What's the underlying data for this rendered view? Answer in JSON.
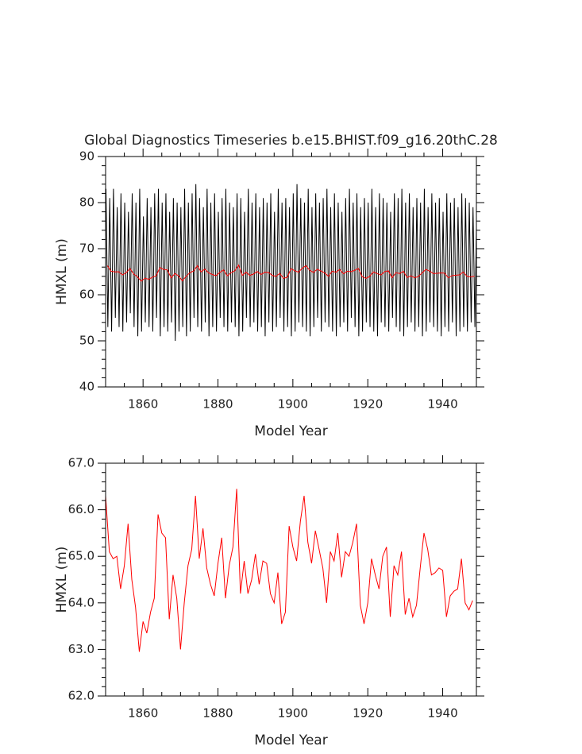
{
  "chart_data": [
    {
      "type": "line",
      "title": "Global Diagnostics Timeseries b.e15.BHIST.f09_g16.20thC.28",
      "x_label": "Model Year",
      "y_label": "HMXL (m)",
      "xlim": [
        1850,
        1949
      ],
      "xticks": [
        1860,
        1880,
        1900,
        1920,
        1940
      ],
      "xticks_minor": [
        1855,
        1865,
        1870,
        1875,
        1885,
        1890,
        1895,
        1905,
        1910,
        1915,
        1925,
        1930,
        1935,
        1945
      ],
      "ylim": [
        40,
        90
      ],
      "yticks": [
        40,
        50,
        60,
        70,
        80,
        90
      ],
      "yticks_minor": [
        42,
        44,
        46,
        48,
        52,
        54,
        56,
        58,
        62,
        64,
        66,
        68,
        72,
        74,
        76,
        78,
        82,
        84,
        86,
        88
      ],
      "series": [
        {
          "color": "#000000",
          "x": [
            1850.1,
            1850.6,
            1851.1,
            1851.6,
            1852.1,
            1852.6,
            1853.1,
            1853.6,
            1854.1,
            1854.6,
            1855.1,
            1855.6,
            1856.1,
            1856.6,
            1857.1,
            1857.6,
            1858.1,
            1858.6,
            1859.1,
            1859.6,
            1860.1,
            1860.6,
            1861.1,
            1861.6,
            1862.1,
            1862.6,
            1863.1,
            1863.6,
            1864.1,
            1864.6,
            1865.1,
            1865.6,
            1866.1,
            1866.6,
            1867.1,
            1867.6,
            1868.1,
            1868.6,
            1869.1,
            1869.6,
            1870.1,
            1870.6,
            1871.1,
            1871.6,
            1872.1,
            1872.6,
            1873.1,
            1873.6,
            1874.1,
            1874.6,
            1875.1,
            1875.6,
            1876.1,
            1876.6,
            1877.1,
            1877.6,
            1878.1,
            1878.6,
            1879.1,
            1879.6,
            1880.1,
            1880.6,
            1881.1,
            1881.6,
            1882.1,
            1882.6,
            1883.1,
            1883.6,
            1884.1,
            1884.6,
            1885.1,
            1885.6,
            1886.1,
            1886.6,
            1887.1,
            1887.6,
            1888.1,
            1888.6,
            1889.1,
            1889.6,
            1890.1,
            1890.6,
            1891.1,
            1891.6,
            1892.1,
            1892.6,
            1893.1,
            1893.6,
            1894.1,
            1894.6,
            1895.1,
            1895.6,
            1896.1,
            1896.6,
            1897.1,
            1897.6,
            1898.1,
            1898.6,
            1899.1,
            1899.6,
            1900.1,
            1900.6,
            1901.1,
            1901.6,
            1902.1,
            1902.6,
            1903.1,
            1903.6,
            1904.1,
            1904.6,
            1905.1,
            1905.6,
            1906.1,
            1906.6,
            1907.1,
            1907.6,
            1908.1,
            1908.6,
            1909.1,
            1909.6,
            1910.1,
            1910.6,
            1911.1,
            1911.6,
            1912.1,
            1912.6,
            1913.1,
            1913.6,
            1914.1,
            1914.6,
            1915.1,
            1915.6,
            1916.1,
            1916.6,
            1917.1,
            1917.6,
            1918.1,
            1918.6,
            1919.1,
            1919.6,
            1920.1,
            1920.6,
            1921.1,
            1921.6,
            1922.1,
            1922.6,
            1923.1,
            1923.6,
            1924.1,
            1924.6,
            1925.1,
            1925.6,
            1926.1,
            1926.6,
            1927.1,
            1927.6,
            1928.1,
            1928.6,
            1929.1,
            1929.6,
            1930.1,
            1930.6,
            1931.1,
            1931.6,
            1932.1,
            1932.6,
            1933.1,
            1933.6,
            1934.1,
            1934.6,
            1935.1,
            1935.6,
            1936.1,
            1936.6,
            1937.1,
            1937.6,
            1938.1,
            1938.6,
            1939.1,
            1939.6,
            1940.1,
            1940.6,
            1941.1,
            1941.6,
            1942.1,
            1942.6,
            1943.1,
            1943.6,
            1944.1,
            1944.6,
            1945.1,
            1945.6,
            1946.1,
            1946.6,
            1947.1,
            1947.6,
            1948.1,
            1948.6,
            1949.1,
            1949.6
          ],
          "values": [
            83,
            53,
            81,
            52,
            83,
            55,
            79,
            53,
            82,
            52,
            80,
            54,
            78,
            56,
            82,
            53,
            80,
            51,
            83,
            52,
            77,
            54,
            81,
            53,
            79,
            52,
            82,
            55,
            83,
            51,
            80,
            53,
            82,
            52,
            78,
            54,
            81,
            50,
            80,
            52,
            79,
            53,
            83,
            51,
            80,
            52,
            82,
            55,
            84,
            53,
            81,
            52,
            79,
            54,
            83,
            51,
            80,
            53,
            82,
            52,
            78,
            55,
            81,
            53,
            83,
            52,
            80,
            54,
            79,
            53,
            82,
            51,
            81,
            52,
            78,
            55,
            83,
            53,
            80,
            54,
            82,
            52,
            79,
            53,
            81,
            51,
            80,
            54,
            82,
            52,
            78,
            53,
            83,
            55,
            80,
            52,
            81,
            53,
            79,
            51,
            82,
            52,
            84,
            54,
            81,
            53,
            80,
            52,
            83,
            51,
            79,
            53,
            82,
            55,
            80,
            52,
            81,
            54,
            83,
            53,
            79,
            52,
            82,
            51,
            80,
            53,
            78,
            54,
            81,
            52,
            83,
            55,
            80,
            53,
            82,
            51,
            79,
            52,
            81,
            54,
            80,
            53,
            83,
            52,
            79,
            51,
            82,
            54,
            81,
            53,
            80,
            52,
            78,
            55,
            82,
            53,
            81,
            52,
            83,
            51,
            80,
            53,
            82,
            54,
            79,
            52,
            81,
            53,
            80,
            51,
            83,
            52,
            79,
            54,
            82,
            53,
            80,
            52,
            81,
            51,
            78,
            53,
            82,
            52,
            80,
            54,
            81,
            51,
            79,
            52,
            82,
            53,
            81,
            52,
            80,
            54,
            79,
            53,
            80,
            52
          ]
        },
        {
          "color": "#ff0000",
          "x": [
            1850.5,
            1851.5,
            1852.5,
            1853.5,
            1854.5,
            1855.5,
            1856.5,
            1857.5,
            1858.5,
            1859.5,
            1860.5,
            1861.5,
            1862.5,
            1863.5,
            1864.5,
            1865.5,
            1866.5,
            1867.5,
            1868.5,
            1869.5,
            1870.5,
            1871.5,
            1872.5,
            1873.5,
            1874.5,
            1875.5,
            1876.5,
            1877.5,
            1878.5,
            1879.5,
            1880.5,
            1881.5,
            1882.5,
            1883.5,
            1884.5,
            1885.5,
            1886.5,
            1887.5,
            1888.5,
            1889.5,
            1890.5,
            1891.5,
            1892.5,
            1893.5,
            1894.5,
            1895.5,
            1896.5,
            1897.5,
            1898.5,
            1899.5,
            1900.5,
            1901.5,
            1902.5,
            1903.5,
            1904.5,
            1905.5,
            1906.5,
            1907.5,
            1908.5,
            1909.5,
            1910.5,
            1911.5,
            1912.5,
            1913.5,
            1914.5,
            1915.5,
            1916.5,
            1917.5,
            1918.5,
            1919.5,
            1920.5,
            1921.5,
            1922.5,
            1923.5,
            1924.5,
            1925.5,
            1926.5,
            1927.5,
            1928.5,
            1929.5,
            1930.5,
            1931.5,
            1932.5,
            1933.5,
            1934.5,
            1935.5,
            1936.5,
            1937.5,
            1938.5,
            1939.5,
            1940.5,
            1941.5,
            1942.5,
            1943.5,
            1944.5,
            1945.5,
            1946.5,
            1947.5,
            1948.5
          ],
          "values": [
            66.3,
            65.1,
            64.95,
            65.0,
            64.3,
            64.8,
            65.7,
            64.5,
            63.9,
            62.95,
            63.6,
            63.35,
            63.8,
            64.1,
            65.9,
            65.5,
            65.4,
            63.65,
            64.6,
            64.1,
            63.0,
            64.0,
            64.8,
            65.15,
            66.3,
            64.95,
            65.6,
            64.75,
            64.4,
            64.15,
            64.85,
            65.4,
            64.1,
            64.8,
            65.2,
            66.45,
            64.2,
            64.9,
            64.2,
            64.5,
            65.05,
            64.4,
            64.9,
            64.85,
            64.2,
            64.0,
            64.65,
            63.55,
            63.8,
            65.65,
            65.2,
            64.9,
            65.75,
            66.3,
            65.3,
            64.85,
            65.55,
            65.15,
            64.75,
            64.0,
            65.1,
            64.9,
            65.5,
            64.55,
            65.1,
            65.0,
            65.3,
            65.7,
            63.95,
            63.55,
            64.0,
            64.95,
            64.6,
            64.3,
            65.0,
            65.2,
            63.7,
            64.8,
            64.6,
            65.1,
            63.75,
            64.1,
            63.7,
            63.95,
            64.75,
            65.5,
            65.15,
            64.6,
            64.65,
            64.75,
            64.7,
            63.7,
            64.15,
            64.25,
            64.3,
            64.95,
            64.0,
            63.85,
            64.05
          ]
        }
      ]
    },
    {
      "type": "line",
      "x_label": "Model Year",
      "y_label": "HMXL (m)",
      "xlim": [
        1850,
        1949
      ],
      "xticks": [
        1860,
        1880,
        1900,
        1920,
        1940
      ],
      "xticks_minor": [
        1855,
        1865,
        1870,
        1875,
        1885,
        1890,
        1895,
        1905,
        1910,
        1915,
        1925,
        1930,
        1935,
        1945
      ],
      "ylim": [
        62,
        67
      ],
      "yticks": [
        {
          "value": 62,
          "label": "62.0"
        },
        {
          "value": 63,
          "label": "63.0"
        },
        {
          "value": 64,
          "label": "64.0"
        },
        {
          "value": 65,
          "label": "65.0"
        },
        {
          "value": 66,
          "label": "66.0"
        },
        {
          "value": 67,
          "label": "67.0"
        }
      ],
      "yticks_minor": [
        62.2,
        62.4,
        62.6,
        62.8,
        63.2,
        63.4,
        63.6,
        63.8,
        64.2,
        64.4,
        64.6,
        64.8,
        65.2,
        65.4,
        65.6,
        65.8,
        66.2,
        66.4,
        66.6,
        66.8
      ],
      "series": [
        {
          "color": "#ff0000",
          "x": [
            1850,
            1851,
            1852,
            1853,
            1854,
            1855,
            1856,
            1857,
            1858,
            1859,
            1860,
            1861,
            1862,
            1863,
            1864,
            1865,
            1866,
            1867,
            1868,
            1869,
            1870,
            1871,
            1872,
            1873,
            1874,
            1875,
            1876,
            1877,
            1878,
            1879,
            1880,
            1881,
            1882,
            1883,
            1884,
            1885,
            1886,
            1887,
            1888,
            1889,
            1890,
            1891,
            1892,
            1893,
            1894,
            1895,
            1896,
            1897,
            1898,
            1899,
            1900,
            1901,
            1902,
            1903,
            1904,
            1905,
            1906,
            1907,
            1908,
            1909,
            1910,
            1911,
            1912,
            1913,
            1914,
            1915,
            1916,
            1917,
            1918,
            1919,
            1920,
            1921,
            1922,
            1923,
            1924,
            1925,
            1926,
            1927,
            1928,
            1929,
            1930,
            1931,
            1932,
            1933,
            1934,
            1935,
            1936,
            1937,
            1938,
            1939,
            1940,
            1941,
            1942,
            1943,
            1944,
            1945,
            1946,
            1947,
            1948
          ],
          "values": [
            66.3,
            65.1,
            64.95,
            65.0,
            64.3,
            64.8,
            65.7,
            64.5,
            63.9,
            62.95,
            63.6,
            63.35,
            63.8,
            64.1,
            65.9,
            65.5,
            65.4,
            63.65,
            64.6,
            64.1,
            63.0,
            64.0,
            64.8,
            65.15,
            66.3,
            64.95,
            65.6,
            64.75,
            64.4,
            64.15,
            64.85,
            65.4,
            64.1,
            64.8,
            65.2,
            66.45,
            64.2,
            64.9,
            64.2,
            64.5,
            65.05,
            64.4,
            64.9,
            64.85,
            64.2,
            64.0,
            64.65,
            63.55,
            63.8,
            65.65,
            65.2,
            64.9,
            65.75,
            66.3,
            65.3,
            64.85,
            65.55,
            65.15,
            64.75,
            64.0,
            65.1,
            64.9,
            65.5,
            64.55,
            65.1,
            65.0,
            65.3,
            65.7,
            63.95,
            63.55,
            64.0,
            64.95,
            64.6,
            64.3,
            65.0,
            65.2,
            63.7,
            64.8,
            64.6,
            65.1,
            63.75,
            64.1,
            63.7,
            63.95,
            64.75,
            65.5,
            65.15,
            64.6,
            64.65,
            64.75,
            64.7,
            63.7,
            64.15,
            64.25,
            64.3,
            64.95,
            64.0,
            63.85,
            64.05
          ]
        }
      ]
    }
  ]
}
